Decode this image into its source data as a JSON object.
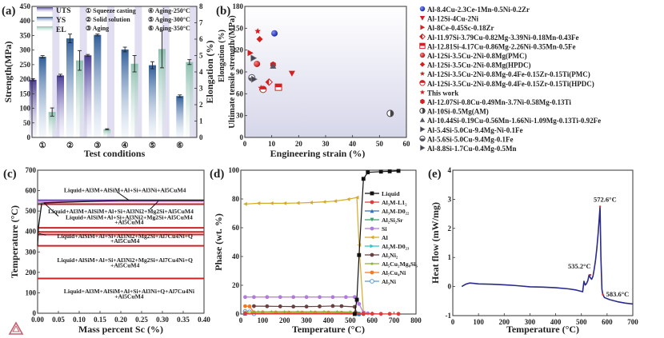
{
  "chart_data": [
    {
      "panel": "(a)",
      "type": "bar",
      "xlabel": "Test conditions",
      "ylabel": "Strength(MPa)",
      "ylabel_right": "Elongation (%)",
      "ylim": [
        0,
        450
      ],
      "ylim_right": [
        0,
        8
      ],
      "yticks": [
        "0",
        "50",
        "100",
        "150",
        "200",
        "250",
        "300",
        "350",
        "400",
        "450"
      ],
      "yticks_right": [
        "0",
        "1",
        "2",
        "3",
        "4",
        "5",
        "6",
        "7",
        "8"
      ],
      "categories": [
        "①",
        "②",
        "③",
        "④",
        "⑤",
        "⑥"
      ],
      "condition_legend": [
        "① Squeeze casting",
        "② Solid solution",
        "③ Aging",
        "④ Aging-250°C",
        "⑤ Aging-300°C",
        "⑥ Aging-350°C"
      ],
      "series": [
        {
          "name": "UTS",
          "axis": "left",
          "color": "#5b4fa3",
          "values": [
            198,
            213,
            282,
            null,
            null,
            null
          ],
          "errors": [
            4,
            4,
            3,
            null,
            null,
            null
          ]
        },
        {
          "name": "YS",
          "axis": "left",
          "color": "#3a6ea8",
          "values": [
            277,
            340,
            352,
            302,
            248,
            142
          ],
          "errors": [
            4,
            15,
            3,
            8,
            12,
            4
          ]
        },
        {
          "name": "EL",
          "axis": "right",
          "color": "#8fc0b0",
          "values": [
            1.55,
            4.7,
            0.5,
            4.5,
            5.4,
            4.6
          ],
          "errors": [
            0.25,
            0.6,
            0.03,
            0.5,
            1.15,
            0.15
          ]
        }
      ]
    },
    {
      "panel": "(b)",
      "type": "scatter",
      "xlabel": "Engineering strain (%)",
      "ylabel": "Ultimate tensile strength/(MPa)",
      "xlim": [
        0,
        60
      ],
      "ylim": [
        0,
        180
      ],
      "xticks": [
        "0",
        "10",
        "20",
        "30",
        "40",
        "50",
        "60"
      ],
      "yticks": [
        "0",
        "30",
        "60",
        "90",
        "120",
        "150",
        "180"
      ],
      "legend_position": "right-outside",
      "series": [
        {
          "name": "Al-8.4Cu-2.3Ce-1Mn-0.5Ni-0.2Zr",
          "marker": "sphere",
          "color": "#1b2fb5",
          "points": [
            [
              11,
              143
            ]
          ]
        },
        {
          "name": "Al-12Si-4Cu-2Ni",
          "marker": "triangle-down",
          "color": "#d42020",
          "points": [
            [
              17.5,
              88
            ]
          ]
        },
        {
          "name": "Al-8Ce-0.45Sc-0.18Zr",
          "marker": "triangle-right",
          "color": "#d42020",
          "points": [
            [
              2,
              116
            ]
          ]
        },
        {
          "name": "Al-11.97Si-3.79Cu-0.82Mg-3.39Ni-0.18Mn-0.43Fe",
          "marker": "diamond-half",
          "color": "#d42020",
          "points": [
            [
              9,
              76
            ]
          ]
        },
        {
          "name": "Al-12.81Si-4.17Cu-0.86Mg-2.26Ni-0.35Mn-0.5Fe",
          "marker": "square-half",
          "color": "#d42020",
          "points": [
            [
              12.5,
              69
            ]
          ]
        },
        {
          "name": "Al-12Si-3.5Cu-2Ni-0.8Mg(PMC)",
          "marker": "sphere",
          "color": "#d42020",
          "points": [
            [
              4.5,
              101
            ]
          ]
        },
        {
          "name": "Al-12Si-3.5Cu-2Ni-0.8Mg(HPDC)",
          "marker": "diamond",
          "color": "#d42020",
          "points": [
            [
              5.5,
              135
            ]
          ]
        },
        {
          "name": "Al-12Si-3.5Cu-2Ni-0.8Mg-0.4Fe-0.15Zr-0.15Ti(PMC)",
          "marker": "star",
          "color": "#d42020",
          "points": [
            [
              6,
              68
            ]
          ]
        },
        {
          "name": "Al-12Si-3.5Cu-2Ni-0.8Mg-0.4Fe-0.15Zr-0.15Ti(HPDC)",
          "marker": "circle-half",
          "color": "#d42020",
          "points": [
            [
              6.8,
              66
            ]
          ]
        },
        {
          "name": "This work",
          "marker": "star",
          "color": "#d42020",
          "points": [
            [
              4.8,
              146
            ]
          ]
        },
        {
          "name": "Al-12.07Si-0.8Cu-0.49Mn-3.7Ni-0.58Mg-0.13Ti",
          "marker": "hexagon",
          "color": "#d42020",
          "points": [
            [
              10.5,
              100
            ]
          ]
        },
        {
          "name": "Al-10Si-0.5Mg(AM)",
          "marker": "circle-half-dark",
          "color": "#444444",
          "points": [
            [
              54,
              33
            ]
          ]
        },
        {
          "name": "Al-10.44Si-0.19Cu-0.56Mn-1.66Ni-1.09Mg-0.13Ti-0.92Fe",
          "marker": "triangle-up",
          "color": "#555566",
          "points": [
            [
              10.5,
              98
            ]
          ]
        },
        {
          "name": "Al-5.4Si-5.0Cu-9.4Mg-Ni-0.1Fe",
          "marker": "triangle-right-outline",
          "color": "#444455",
          "points": [
            [
              3.2,
              109
            ]
          ]
        },
        {
          "name": "Al-5.6Si-5.0Cu-9.4Mg-0.1Fe",
          "marker": "circle-bottom-half",
          "color": "#555566",
          "points": [
            [
              2.6,
              82
            ]
          ]
        },
        {
          "name": "Al-8.8Si-1.7Cu-0.4Mg-0.5Mn",
          "marker": "triangle-right-outline",
          "color": "#444455",
          "points": [
            [
              3.4,
              80
            ]
          ]
        }
      ]
    },
    {
      "panel": "(c)",
      "type": "line",
      "xlabel": "Mass percent Sc (%)",
      "ylabel": "Temperature (°C)",
      "xlim": [
        0,
        0.4
      ],
      "ylim": [
        0,
        700
      ],
      "xticks": [
        "0.00",
        "0.05",
        "0.10",
        "0.15",
        "0.20",
        "0.25",
        "0.30",
        "0.35",
        "0.40"
      ],
      "yticks": [
        "0",
        "100",
        "200",
        "300",
        "400",
        "500",
        "600",
        "700"
      ],
      "phase_boundaries_C": [
        553,
        548,
        534,
        418,
        398,
        385,
        330,
        170
      ],
      "region_labels": [
        {
          "text": "Liquid+Al3M+AlSiM+Al+Si+Al3Ni+Al5CuM4",
          "x": 0.21,
          "T": 605
        },
        {
          "text": "Liquid+Al3M+AlSiM+Al+Si+Al3Ni2+Mg2Si+Al5CuM4",
          "x": 0.2,
          "T": 500
        },
        {
          "text": "Liquid+AlSiM+Al+Si+Al3Ni2+Mg2Si+Al5CuM4",
          "x": 0.22,
          "T": 472
        },
        {
          "text": "+Al5CuM4",
          "x": 0.22,
          "T": 448
        },
        {
          "text": "Liquid+AlSiM+Al+Si+Al3Ni2+Mg2Si+Al7Cu4Ni+Q",
          "x": 0.21,
          "T": 380
        },
        {
          "text": "+Al5CuM4",
          "x": 0.21,
          "T": 355
        },
        {
          "text": "Liquid+AlSiM+Al+Si+Al3Ni2+Mg2Si+Al7Cu4Ni+Q",
          "x": 0.21,
          "T": 262
        },
        {
          "text": "+Al5CuM4",
          "x": 0.21,
          "T": 237
        },
        {
          "text": "Liquid+Al3M+AlSiM+Al+Si+Al3Ni+Q+Al7Cu4Ni",
          "x": 0.22,
          "T": 110
        },
        {
          "text": "+Al5CuM4",
          "x": 0.22,
          "T": 85
        }
      ]
    },
    {
      "panel": "(d)",
      "type": "line",
      "xlabel": "Temperature (°C)",
      "ylabel": "Phase (wt. %)",
      "xlim": [
        0,
        800
      ],
      "ylim": [
        0,
        100
      ],
      "xticks": [
        "0",
        "100",
        "200",
        "300",
        "400",
        "500",
        "600",
        "700",
        "800"
      ],
      "yticks": [
        "0",
        "20",
        "40",
        "60",
        "80",
        "100"
      ],
      "legend_position": "right",
      "series": [
        {
          "name": "Liquid",
          "color": "#111111",
          "marker": "square",
          "x": [
            520,
            530,
            540,
            560,
            580,
            640,
            680,
            720
          ],
          "y": [
            0,
            10,
            41,
            94,
            98.5,
            99,
            99.2,
            99.5
          ]
        },
        {
          "name": "Al3M-L12",
          "color": "#e03a3a",
          "marker": "circle",
          "x": [
            20,
            560,
            600,
            640,
            680,
            720
          ],
          "y": [
            0.3,
            0.3,
            0.2,
            0.1,
            0.1,
            0.1
          ]
        },
        {
          "name": "Al3M-D022",
          "color": "#2f6fc0",
          "marker": "triangle-up",
          "x": [
            20,
            540
          ],
          "y": [
            0.2,
            0.1
          ]
        },
        {
          "name": "Al2Si2Sr",
          "color": "#3aa06a",
          "marker": "triangle-down",
          "x": [
            20,
            540
          ],
          "y": [
            0.1,
            0.1
          ]
        },
        {
          "name": "Si",
          "color": "#b07ae0",
          "marker": "circle",
          "x": [
            20,
            60,
            120,
            180,
            240,
            300,
            360,
            420,
            480,
            520,
            530,
            540,
            560,
            580
          ],
          "y": [
            11.8,
            11.8,
            11.8,
            11.8,
            11.8,
            11.8,
            11.8,
            11.8,
            11.8,
            11.8,
            9,
            7,
            1,
            0.5
          ]
        },
        {
          "name": "Al",
          "color": "#d4aa2a",
          "marker": "triangle-left",
          "x": [
            20,
            80,
            140,
            200,
            260,
            320,
            380,
            430,
            490,
            530,
            540,
            560
          ],
          "y": [
            76.5,
            77,
            77,
            77,
            77.2,
            77.5,
            78,
            78.5,
            79.8,
            81,
            48,
            1
          ]
        },
        {
          "name": "Al3M-D023",
          "color": "#2ec4c4",
          "marker": "triangle-right",
          "x": [
            20,
            540
          ],
          "y": [
            0.2,
            0.1
          ]
        },
        {
          "name": "Al3Ni2",
          "color": "#6a3f3f",
          "marker": "circle",
          "x": [
            60,
            120,
            180,
            240,
            300,
            360,
            420,
            460,
            520,
            530,
            560
          ],
          "y": [
            5.5,
            5.4,
            5.3,
            5.2,
            5.2,
            5.3,
            5.6,
            5.5,
            5,
            0.5,
            0
          ]
        },
        {
          "name": "Al5Cu2Mg8Si6",
          "color": "#8ab030",
          "marker": "star",
          "x": [
            20,
            80,
            140,
            200,
            260,
            320,
            380,
            440,
            500,
            540
          ],
          "y": [
            1.5,
            1.5,
            1.6,
            1.6,
            1.6,
            1.6,
            1.6,
            1.6,
            1.5,
            0
          ]
        },
        {
          "name": "Al7Cu4Ni",
          "color": "#f07a20",
          "marker": "circle",
          "x": [
            20,
            40,
            60,
            100,
            160,
            220,
            280,
            340,
            400,
            460,
            520,
            540
          ],
          "y": [
            5.5,
            5.3,
            1.2,
            1.2,
            1.1,
            1.0,
            1.0,
            1.0,
            1.0,
            0.9,
            0.8,
            0
          ]
        },
        {
          "name": "Al3Ni",
          "color": "#5a9ad0",
          "marker": "circle-open",
          "x": [
            20,
            40,
            60,
            540
          ],
          "y": [
            1.8,
            1.5,
            0.2,
            0
          ]
        }
      ],
      "legend_labels": [
        "Liquid",
        "Al₃M-L1₂",
        "Al₃M-D0₂₂",
        "Al₂Si₂Sr",
        "Si",
        "Al",
        "Al₃M-D0₂₃",
        "Al₃Ni₂",
        "Al₅Cu₂Mg₈Si₆",
        "Al₇Cu₄Ni",
        "Al₃Ni"
      ]
    },
    {
      "panel": "(e)",
      "type": "line",
      "xlabel": "Temperature (°C)",
      "ylabel": "Heat flow (mW/mg)",
      "xlim": [
        0,
        700
      ],
      "ylim": [
        -1,
        4
      ],
      "xticks": [
        "0",
        "100",
        "200",
        "300",
        "400",
        "500",
        "600",
        "700"
      ],
      "yticks": [
        "-1",
        "0",
        "1",
        "2",
        "3",
        "4"
      ],
      "series": [
        {
          "name": "DSC",
          "color": "#2a2a8a",
          "x": [
            35,
            50,
            65,
            80,
            100,
            150,
            200,
            250,
            300,
            350,
            400,
            450,
            480,
            505,
            510,
            515,
            520,
            525,
            530,
            535,
            540,
            545,
            550,
            555,
            560,
            565,
            570,
            572.6,
            576,
            580,
            583.6,
            590,
            610,
            640,
            670,
            700
          ],
          "y": [
            0,
            0.08,
            0.12,
            0.11,
            0.09,
            0.08,
            0.06,
            0.03,
            -0.01,
            -0.02,
            -0.04,
            -0.08,
            -0.12,
            -0.18,
            0.18,
            0.05,
            0.1,
            0.2,
            0.4,
            0.3,
            0.25,
            0.35,
            0.6,
            0.9,
            1.3,
            1.8,
            2.4,
            2.75,
            1.0,
            -0.1,
            -0.28,
            -0.38,
            -0.45,
            -0.52,
            -0.57,
            -0.6
          ]
        }
      ],
      "annotations": [
        {
          "text": "572.6°C",
          "x": 572.6,
          "y": 2.75
        },
        {
          "text": "535.2°C",
          "x": 535.2,
          "y": 0.4
        },
        {
          "text": "583.6°C",
          "x": 583.6,
          "y": -0.28
        }
      ]
    }
  ],
  "panels": {
    "a": {
      "label": "(a)"
    },
    "b": {
      "label": "(b)"
    },
    "c": {
      "label": "(c)"
    },
    "d": {
      "label": "(d)"
    },
    "e": {
      "label": "(e)"
    }
  },
  "logo": {
    "icon": "thermo-calc-triangle-icon"
  }
}
